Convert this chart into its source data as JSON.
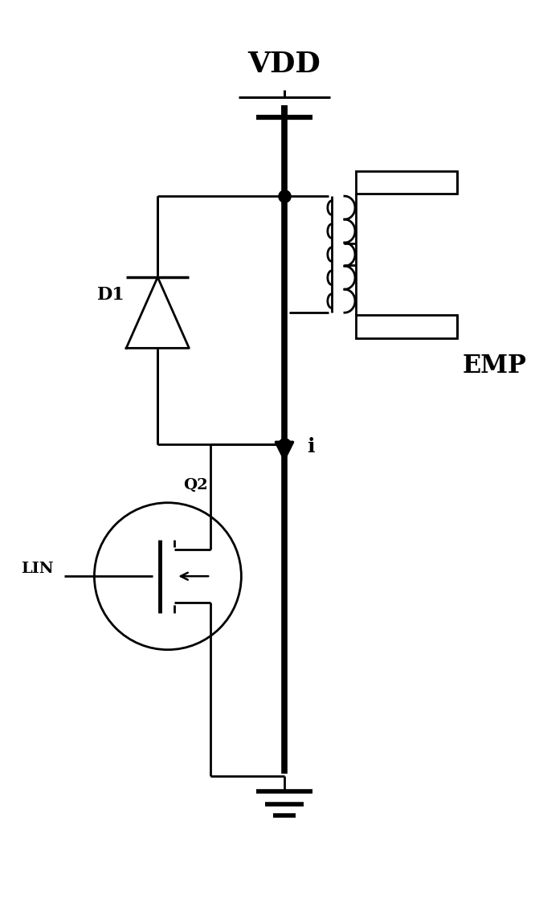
{
  "background_color": "#ffffff",
  "line_color": "#000000",
  "lw": 2.0,
  "tlw": 5.5,
  "vdd_label": "VDD",
  "emp_label": "EMP",
  "i_label": "i",
  "d1_label": "D1",
  "q2_label": "Q2",
  "lin_label": "LIN",
  "figsize": [
    6.66,
    11.19
  ],
  "dpi": 100,
  "xlim": [
    0,
    10
  ],
  "ylim": [
    0,
    16
  ]
}
